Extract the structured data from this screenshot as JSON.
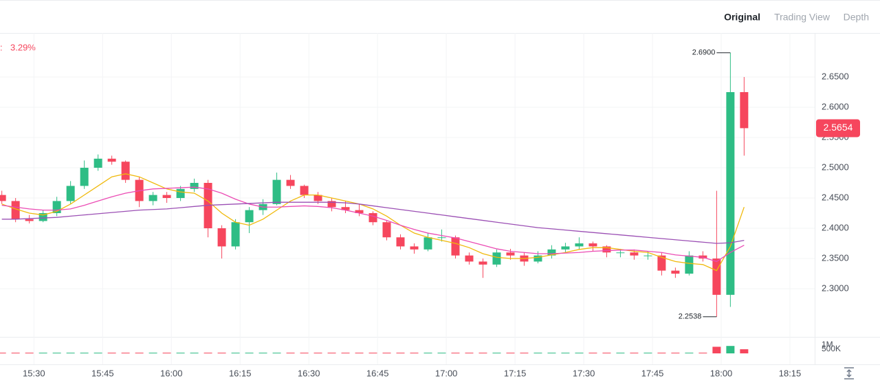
{
  "tabs": [
    "Original",
    "Trading View",
    "Depth"
  ],
  "chart_data": {
    "type": "candlestick",
    "change_label": "3.29%",
    "x": [
      923,
      926,
      929,
      932,
      935,
      938,
      941,
      944,
      947,
      950,
      953,
      956,
      959,
      962,
      965,
      968,
      971,
      974,
      977,
      980,
      983,
      986,
      989,
      992,
      995,
      998,
      1001,
      1004,
      1007,
      1010,
      1013,
      1016,
      1019,
      1022,
      1025,
      1028,
      1031,
      1034,
      1037,
      1040,
      1043,
      1046,
      1049,
      1052,
      1055,
      1058,
      1061,
      1064,
      1067,
      1070,
      1073,
      1076,
      1079,
      1082,
      1085
    ],
    "open": [
      2.455,
      2.445,
      2.415,
      2.412,
      2.425,
      2.445,
      2.47,
      2.5,
      2.515,
      2.51,
      2.48,
      2.445,
      2.455,
      2.45,
      2.465,
      2.475,
      2.4,
      2.37,
      2.41,
      2.43,
      2.44,
      2.48,
      2.47,
      2.455,
      2.445,
      2.435,
      2.43,
      2.425,
      2.41,
      2.385,
      2.37,
      2.365,
      2.385,
      2.385,
      2.355,
      2.345,
      2.34,
      2.36,
      2.355,
      2.345,
      2.355,
      2.365,
      2.37,
      2.375,
      2.37,
      2.36,
      2.36,
      2.355,
      2.355,
      2.33,
      2.325,
      2.355,
      2.35,
      2.29,
      2.625
    ],
    "high": [
      2.462,
      2.45,
      2.422,
      2.43,
      2.452,
      2.478,
      2.512,
      2.522,
      2.52,
      2.512,
      2.485,
      2.46,
      2.46,
      2.47,
      2.482,
      2.48,
      2.405,
      2.415,
      2.435,
      2.448,
      2.492,
      2.488,
      2.472,
      2.46,
      2.45,
      2.445,
      2.44,
      2.428,
      2.412,
      2.39,
      2.375,
      2.392,
      2.398,
      2.388,
      2.36,
      2.35,
      2.365,
      2.366,
      2.36,
      2.362,
      2.372,
      2.376,
      2.385,
      2.378,
      2.372,
      2.366,
      2.365,
      2.362,
      2.36,
      2.335,
      2.362,
      2.362,
      2.462,
      2.69,
      2.65
    ],
    "low": [
      2.44,
      2.41,
      2.408,
      2.41,
      2.42,
      2.44,
      2.465,
      2.495,
      2.505,
      2.475,
      2.435,
      2.438,
      2.442,
      2.445,
      2.46,
      2.385,
      2.35,
      2.365,
      2.392,
      2.422,
      2.438,
      2.465,
      2.45,
      2.44,
      2.428,
      2.425,
      2.42,
      2.405,
      2.38,
      2.365,
      2.358,
      2.362,
      2.378,
      2.35,
      2.34,
      2.318,
      2.336,
      2.348,
      2.338,
      2.342,
      2.35,
      2.36,
      2.365,
      2.362,
      2.352,
      2.352,
      2.348,
      2.348,
      2.322,
      2.318,
      2.322,
      2.345,
      2.2538,
      2.27,
      2.52
    ],
    "close": [
      2.445,
      2.415,
      2.412,
      2.425,
      2.445,
      2.47,
      2.5,
      2.515,
      2.51,
      2.48,
      2.445,
      2.455,
      2.45,
      2.465,
      2.475,
      2.4,
      2.37,
      2.41,
      2.43,
      2.44,
      2.48,
      2.47,
      2.455,
      2.445,
      2.435,
      2.43,
      2.425,
      2.41,
      2.385,
      2.37,
      2.365,
      2.385,
      2.385,
      2.355,
      2.345,
      2.34,
      2.36,
      2.355,
      2.345,
      2.355,
      2.365,
      2.37,
      2.375,
      2.37,
      2.36,
      2.36,
      2.355,
      2.355,
      2.33,
      2.325,
      2.355,
      2.35,
      2.29,
      2.625,
      2.5654
    ],
    "volume": [
      40000,
      30000,
      25000,
      28000,
      35000,
      45000,
      50000,
      38000,
      30000,
      32000,
      40000,
      28000,
      25000,
      30000,
      32000,
      60000,
      55000,
      45000,
      35000,
      30000,
      42000,
      30000,
      25000,
      24000,
      26000,
      25000,
      24000,
      28000,
      32000,
      30000,
      26000,
      30000,
      25000,
      30000,
      28000,
      35000,
      30000,
      24000,
      22000,
      24000,
      26000,
      25000,
      28000,
      22000,
      24000,
      22000,
      20000,
      22000,
      35000,
      30000,
      60000,
      50000,
      800000,
      900000,
      500000
    ],
    "up_color": "#2ebd85",
    "down_color": "#f6465d",
    "lines": [
      {
        "color": "#f0b90b",
        "values": [
          2.44,
          2.432,
          2.425,
          2.422,
          2.428,
          2.44,
          2.455,
          2.47,
          2.485,
          2.49,
          2.485,
          2.475,
          2.465,
          2.46,
          2.458,
          2.445,
          2.425,
          2.41,
          2.405,
          2.415,
          2.43,
          2.445,
          2.455,
          2.455,
          2.45,
          2.445,
          2.44,
          2.432,
          2.42,
          2.405,
          2.392,
          2.385,
          2.38,
          2.375,
          2.368,
          2.358,
          2.352,
          2.35,
          2.35,
          2.352,
          2.356,
          2.36,
          2.365,
          2.368,
          2.368,
          2.365,
          2.362,
          2.36,
          2.352,
          2.345,
          2.342,
          2.34,
          2.33,
          2.37,
          2.435
        ]
      },
      {
        "color": "#eb4bb4",
        "values": [
          2.438,
          2.435,
          2.432,
          2.43,
          2.43,
          2.432,
          2.438,
          2.445,
          2.452,
          2.458,
          2.462,
          2.465,
          2.466,
          2.467,
          2.468,
          2.465,
          2.458,
          2.448,
          2.44,
          2.435,
          2.435,
          2.436,
          2.437,
          2.436,
          2.434,
          2.43,
          2.425,
          2.42,
          2.413,
          2.405,
          2.398,
          2.392,
          2.388,
          2.384,
          2.378,
          2.372,
          2.366,
          2.362,
          2.36,
          2.358,
          2.358,
          2.359,
          2.36,
          2.362,
          2.363,
          2.364,
          2.364,
          2.362,
          2.36,
          2.356,
          2.354,
          2.352,
          2.345,
          2.36,
          2.372
        ]
      },
      {
        "color": "#9b4fb4",
        "values": [
          2.415,
          2.415,
          2.416,
          2.417,
          2.418,
          2.42,
          2.422,
          2.424,
          2.426,
          2.428,
          2.43,
          2.431,
          2.432,
          2.434,
          2.436,
          2.438,
          2.439,
          2.44,
          2.441,
          2.442,
          2.443,
          2.443,
          2.443,
          2.443,
          2.443,
          2.442,
          2.44,
          2.437,
          2.434,
          2.431,
          2.428,
          2.425,
          2.422,
          2.419,
          2.416,
          2.413,
          2.41,
          2.407,
          2.404,
          2.401,
          2.399,
          2.397,
          2.395,
          2.393,
          2.391,
          2.389,
          2.387,
          2.385,
          2.383,
          2.381,
          2.379,
          2.377,
          2.375,
          2.376,
          2.38
        ]
      }
    ],
    "xlim": [
      922.6,
      1100.4
    ],
    "xticks": [
      {
        "value": 930,
        "label": "15:30"
      },
      {
        "value": 945,
        "label": "15:45"
      },
      {
        "value": 960,
        "label": "16:00"
      },
      {
        "value": 975,
        "label": "16:15"
      },
      {
        "value": 990,
        "label": "16:30"
      },
      {
        "value": 1005,
        "label": "16:45"
      },
      {
        "value": 1020,
        "label": "17:00"
      },
      {
        "value": 1035,
        "label": "17:15"
      },
      {
        "value": 1050,
        "label": "17:30"
      },
      {
        "value": 1065,
        "label": "17:45"
      },
      {
        "value": 1080,
        "label": "18:00"
      },
      {
        "value": 1095,
        "label": "18:15"
      }
    ],
    "ylim": [
      2.2205,
      2.7227
    ],
    "yticks": [
      {
        "value": 2.3,
        "label": "2.3000"
      },
      {
        "value": 2.35,
        "label": "2.3500"
      },
      {
        "value": 2.4,
        "label": "2.4000"
      },
      {
        "value": 2.45,
        "label": "2.4500"
      },
      {
        "value": 2.5,
        "label": "2.5000"
      },
      {
        "value": 2.55,
        "label": "2.5500"
      },
      {
        "value": 2.6,
        "label": "2.6000"
      },
      {
        "value": 2.65,
        "label": "2.6500"
      }
    ],
    "y2lim": [
      0,
      2000000
    ],
    "y2ticks": [
      {
        "value": 500000,
        "label": "500K"
      },
      {
        "value": 1000000,
        "label": "1M"
      }
    ],
    "high_marker": {
      "value": 2.69,
      "label": "2.6900"
    },
    "low_marker": {
      "value": 2.2538,
      "label": "2.2538"
    },
    "last_price": {
      "value": 2.5654,
      "label": "2.5654"
    },
    "grid": true
  }
}
